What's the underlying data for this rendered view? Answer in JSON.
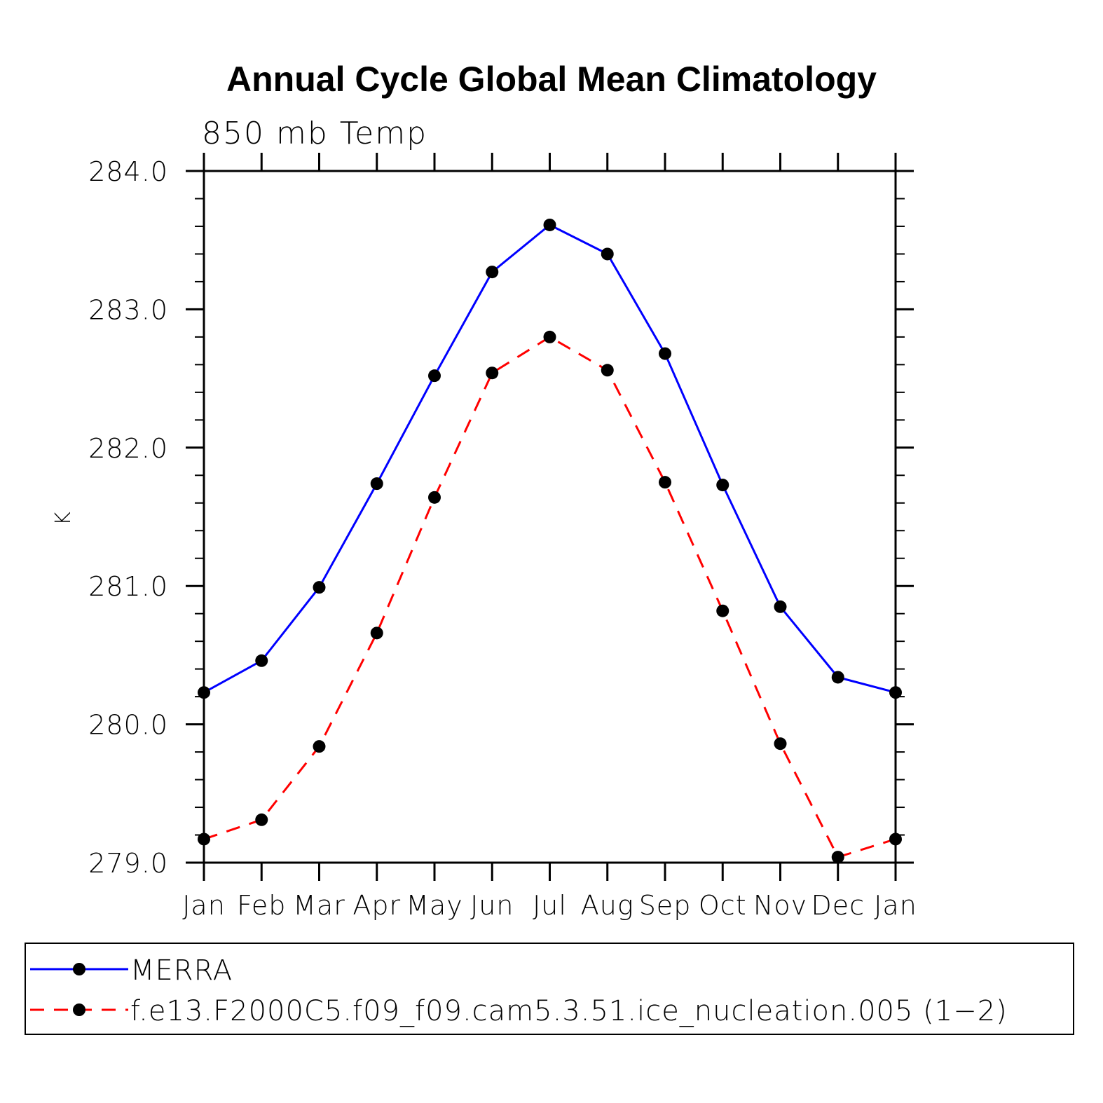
{
  "chart_data": {
    "type": "line",
    "title": "Annual Cycle Global Mean Climatology",
    "subtitle": "850 mb Temp",
    "xlabel": "",
    "ylabel": "K",
    "categories": [
      "Jan",
      "Feb",
      "Mar",
      "Apr",
      "May",
      "Jun",
      "Jul",
      "Aug",
      "Sep",
      "Oct",
      "Nov",
      "Dec",
      "Jan"
    ],
    "ylim": [
      279.0,
      284.0
    ],
    "yticks": [
      279.0,
      280.0,
      281.0,
      282.0,
      283.0,
      284.0
    ],
    "ytick_labels": [
      "279.0",
      "280.0",
      "281.0",
      "282.0",
      "283.0",
      "284.0"
    ],
    "grid": false,
    "legend_position": "bottom",
    "series": [
      {
        "name": "MERRA",
        "color": "#0000ff",
        "line_style": "solid",
        "marker": "filled-circle",
        "values": [
          280.23,
          280.46,
          280.99,
          281.74,
          282.52,
          283.27,
          283.61,
          283.4,
          282.68,
          281.73,
          280.85,
          280.34,
          280.23
        ]
      },
      {
        "name": "f.e13.F2000C5.f09_f09.cam5.3.51.ice_nucleation.005 (1−2)",
        "color": "#ff0000",
        "line_style": "dashed",
        "marker": "filled-circle",
        "values": [
          279.17,
          279.31,
          279.84,
          280.66,
          281.64,
          282.54,
          282.8,
          282.56,
          281.75,
          280.82,
          279.86,
          279.04,
          279.17
        ]
      }
    ]
  }
}
